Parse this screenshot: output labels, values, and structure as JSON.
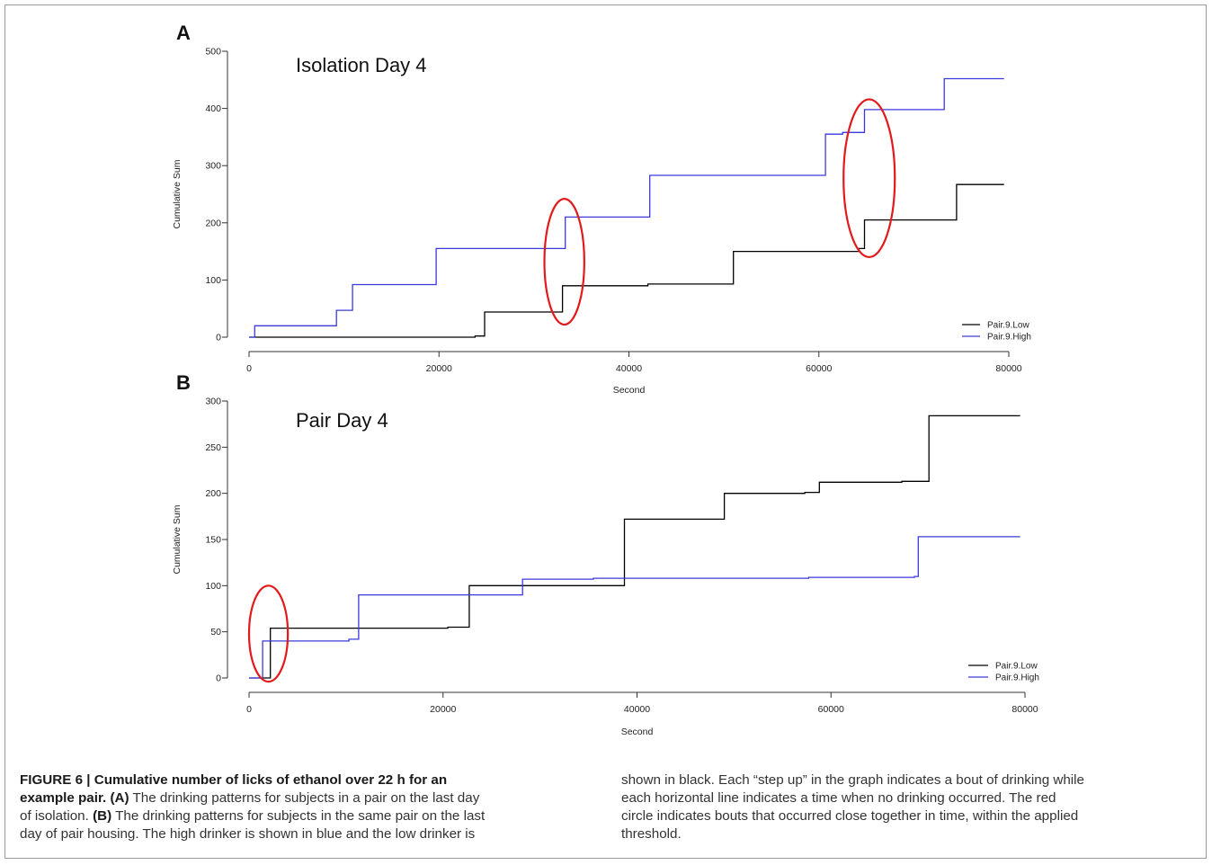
{
  "chart_data": [
    {
      "panel_label": "A",
      "type": "line",
      "step": true,
      "title": "Isolation Day 4",
      "xlabel": "Second",
      "ylabel": "Cumulative Sum",
      "xlim": [
        0,
        80000
      ],
      "ylim": [
        0,
        500
      ],
      "x_ticks": [
        0,
        20000,
        40000,
        60000,
        80000
      ],
      "y_ticks": [
        0,
        100,
        200,
        300,
        400,
        500
      ],
      "grid": false,
      "legend": "bottom-right",
      "series": [
        {
          "name": "Pair.9.Low",
          "color": "#000000",
          "points": [
            [
              0,
              0
            ],
            [
              23800,
              0
            ],
            [
              23800,
              2
            ],
            [
              24800,
              2
            ],
            [
              24800,
              44
            ],
            [
              33000,
              44
            ],
            [
              33000,
              90
            ],
            [
              42000,
              90
            ],
            [
              42000,
              93
            ],
            [
              51000,
              93
            ],
            [
              51000,
              150
            ],
            [
              64200,
              150
            ],
            [
              64200,
              155
            ],
            [
              64800,
              155
            ],
            [
              64800,
              205
            ],
            [
              74500,
              205
            ],
            [
              74500,
              267
            ],
            [
              79500,
              267
            ]
          ]
        },
        {
          "name": "Pair.9.High",
          "color": "#3a3adc",
          "points": [
            [
              0,
              0
            ],
            [
              600,
              0
            ],
            [
              600,
              20
            ],
            [
              9200,
              20
            ],
            [
              9200,
              47
            ],
            [
              10900,
              47
            ],
            [
              10900,
              92
            ],
            [
              19700,
              92
            ],
            [
              19700,
              155
            ],
            [
              33300,
              155
            ],
            [
              33300,
              210
            ],
            [
              42200,
              210
            ],
            [
              42200,
              283
            ],
            [
              60700,
              283
            ],
            [
              60700,
              355
            ],
            [
              62500,
              355
            ],
            [
              62500,
              358
            ],
            [
              64800,
              358
            ],
            [
              64800,
              398
            ],
            [
              73200,
              398
            ],
            [
              73200,
              452
            ],
            [
              79500,
              452
            ]
          ]
        }
      ],
      "annotations": [
        {
          "shape": "ellipse",
          "color": "#e31a1c",
          "center": [
            33200,
            132
          ],
          "radii": [
            2100,
            110
          ]
        },
        {
          "shape": "ellipse",
          "color": "#e31a1c",
          "center": [
            65300,
            278
          ],
          "radii": [
            2700,
            138
          ]
        }
      ]
    },
    {
      "panel_label": "B",
      "type": "line",
      "step": true,
      "title": "Pair Day 4",
      "xlabel": "Second",
      "ylabel": "Cumulative Sum",
      "xlim": [
        0,
        80000
      ],
      "ylim": [
        0,
        300
      ],
      "x_ticks": [
        0,
        20000,
        40000,
        60000,
        80000
      ],
      "y_ticks": [
        0,
        50,
        100,
        150,
        200,
        250,
        300
      ],
      "grid": false,
      "legend": "bottom-right",
      "series": [
        {
          "name": "Pair.9.Low",
          "color": "#000000",
          "points": [
            [
              0,
              0
            ],
            [
              2200,
              0
            ],
            [
              2200,
              54
            ],
            [
              20500,
              54
            ],
            [
              20500,
              55
            ],
            [
              22700,
              55
            ],
            [
              22700,
              100
            ],
            [
              38700,
              100
            ],
            [
              38700,
              172
            ],
            [
              49000,
              172
            ],
            [
              49000,
              200
            ],
            [
              57300,
              200
            ],
            [
              57300,
              201
            ],
            [
              58800,
              201
            ],
            [
              58800,
              212
            ],
            [
              67300,
              212
            ],
            [
              67300,
              213
            ],
            [
              70100,
              213
            ],
            [
              70100,
              284
            ],
            [
              79500,
              284
            ]
          ]
        },
        {
          "name": "Pair.9.High",
          "color": "#3a3adc",
          "points": [
            [
              0,
              0
            ],
            [
              1400,
              0
            ],
            [
              1400,
              40
            ],
            [
              10300,
              40
            ],
            [
              10300,
              42
            ],
            [
              11300,
              42
            ],
            [
              11300,
              90
            ],
            [
              28200,
              90
            ],
            [
              28200,
              107
            ],
            [
              35500,
              107
            ],
            [
              35500,
              108
            ],
            [
              57700,
              108
            ],
            [
              57700,
              109
            ],
            [
              68600,
              109
            ],
            [
              68600,
              110
            ],
            [
              69000,
              110
            ],
            [
              69000,
              153
            ],
            [
              79500,
              153
            ]
          ]
        }
      ],
      "annotations": [
        {
          "shape": "ellipse",
          "color": "#e31a1c",
          "center": [
            2000,
            48
          ],
          "radii": [
            2000,
            52
          ]
        }
      ]
    }
  ],
  "caption": {
    "left_lines": [
      [
        {
          "b": "FIGURE 6 | Cumulative number of licks of ethanol over 22 h for an"
        }
      ],
      [
        {
          "b": "example pair. (A)"
        },
        {
          "t": " The drinking patterns for subjects in a pair on the last day"
        }
      ],
      [
        {
          "t": "of isolation. "
        },
        {
          "b": "(B)"
        },
        {
          "t": " The drinking patterns for subjects in the same pair on the last"
        }
      ],
      [
        {
          "t": "day of pair housing. The high drinker is shown in blue and the low drinker is"
        }
      ]
    ],
    "right_lines": [
      [
        {
          "t": "shown in black. Each “step up” in the graph indicates a bout of drinking while"
        }
      ],
      [
        {
          "t": "each horizontal line indicates a time when no drinking occurred. The red"
        }
      ],
      [
        {
          "t": "circle indicates bouts that occurred close together in time, within the applied"
        }
      ],
      [
        {
          "t": "threshold."
        }
      ]
    ]
  }
}
